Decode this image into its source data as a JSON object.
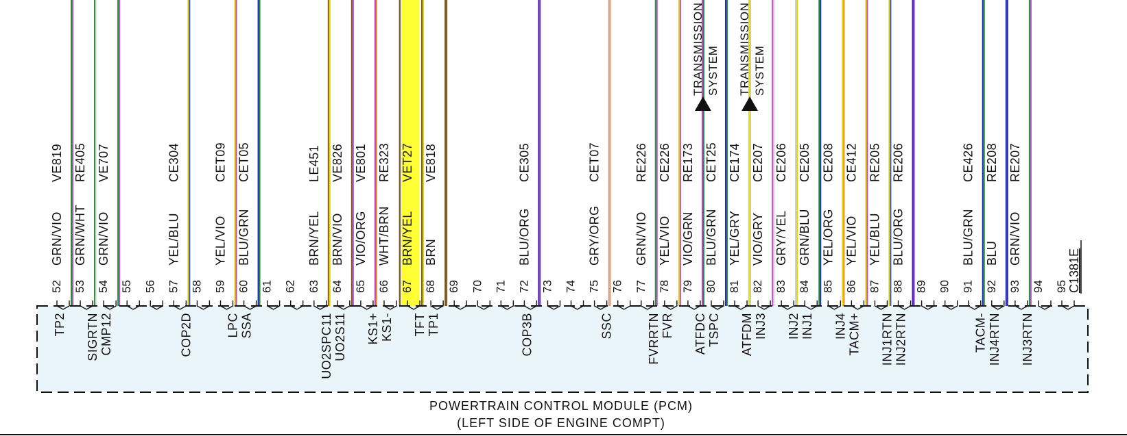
{
  "module": {
    "title": "POWERTRAIN CONTROL MODULE (PCM)",
    "subtitle": "(LEFT SIDE OF ENGINE COMPT)",
    "connector": "C1381E"
  },
  "pins": [
    {
      "pin": "52",
      "circuit": "VE819",
      "color": "GRN/VIO",
      "signal": "TP2",
      "wire": [
        "#1e8f3a",
        "#b84fc4"
      ]
    },
    {
      "pin": "53",
      "circuit": "RE405",
      "color": "GRN/WHT",
      "signal": "SIGRTN",
      "wire": [
        "#1e8f3a",
        "#e6e6e6"
      ]
    },
    {
      "pin": "54",
      "circuit": "VE707",
      "color": "GRN/VIO",
      "signal": "CMP12",
      "wire": [
        "#1e8f3a",
        "#b84fc4"
      ]
    },
    {
      "pin": "55"
    },
    {
      "pin": "56"
    },
    {
      "pin": "57",
      "circuit": "CE304",
      "color": "YEL/BLU",
      "signal": "COP2D",
      "wire": [
        "#e8d400",
        "#3a55d0"
      ]
    },
    {
      "pin": "58"
    },
    {
      "pin": "59",
      "circuit": "CET09",
      "color": "YEL/VIO",
      "signal": "LPC",
      "wire": [
        "#e8d400",
        "#b84fc4"
      ]
    },
    {
      "pin": "60",
      "circuit": "CET05",
      "color": "BLU/GRN",
      "signal": "SSA",
      "wire": [
        "#2a2ab0",
        "#1e8f3a"
      ]
    },
    {
      "pin": "61"
    },
    {
      "pin": "62"
    },
    {
      "pin": "63",
      "circuit": "LE451",
      "color": "BRN/YEL",
      "signal": "UO2SPC11",
      "wire": [
        "#7a5a1e",
        "#e8d400"
      ]
    },
    {
      "pin": "64",
      "circuit": "VE826",
      "color": "BRN/VIO",
      "signal": "UO2S11",
      "wire": [
        "#7a5a1e",
        "#b84fc4"
      ]
    },
    {
      "pin": "65",
      "circuit": "VE801",
      "color": "VIO/ORG",
      "signal": "KS1+",
      "wire": [
        "#b23cc4",
        "#f08a24"
      ]
    },
    {
      "pin": "66",
      "circuit": "RE323",
      "color": "WHT/BRN",
      "signal": "KS1-",
      "wire": [
        "#e6e6e6",
        "#7a5a1e"
      ]
    },
    {
      "pin": "67",
      "circuit": "VET27",
      "color": "BRN/YEL",
      "signal": "TFT",
      "wire": [
        "#7a5a1e",
        "#e8d400"
      ]
    },
    {
      "pin": "68",
      "circuit": "VE818",
      "color": "BRN",
      "signal": "TP1",
      "wire": [
        "#7a5a1e",
        "#7a5a1e"
      ]
    },
    {
      "pin": "69"
    },
    {
      "pin": "70"
    },
    {
      "pin": "71"
    },
    {
      "pin": "72",
      "circuit": "CE305",
      "color": "BLU/ORG",
      "signal": "COP3B",
      "wire": [
        "#4b1fb0",
        "#7a3cc8"
      ]
    },
    {
      "pin": "73"
    },
    {
      "pin": "74"
    },
    {
      "pin": "75",
      "circuit": "CET07",
      "color": "GRY/ORG",
      "signal": "SSC",
      "wire": [
        "#c8a890",
        "#e8a070"
      ]
    },
    {
      "pin": "76"
    },
    {
      "pin": "77",
      "circuit": "RE226",
      "color": "GRN/VIO",
      "signal": "FVRRTN",
      "wire": [
        "#1e8f3a",
        "#b84fc4"
      ]
    },
    {
      "pin": "78",
      "circuit": "CE226",
      "color": "YEL/VIO",
      "signal": "FVR",
      "wire": [
        "#e8d400",
        "#b84fc4"
      ]
    },
    {
      "pin": "79",
      "circuit": "RE173",
      "color": "VIO/GRN",
      "signal": "ATFDC",
      "wire": [
        "#b23cc4",
        "#1e8f3a"
      ]
    },
    {
      "pin": "80",
      "circuit": "CET25",
      "color": "BLU/GRN",
      "signal": "TSPC",
      "wire": [
        "#2a2ab0",
        "#1e8f3a"
      ]
    },
    {
      "pin": "81",
      "circuit": "CE174",
      "color": "YEL/GRY",
      "signal": "ATFDM",
      "wire": [
        "#e8e000",
        "#c8c8c8"
      ]
    },
    {
      "pin": "82",
      "circuit": "CE207",
      "color": "VIO/GRY",
      "signal": "INJ3",
      "wire": [
        "#c84fd4",
        "#c8c8c8"
      ]
    },
    {
      "pin": "83",
      "circuit": "CE206",
      "color": "GRY/YEL",
      "signal": "INJ2",
      "wire": [
        "#c8c8c8",
        "#e8d400"
      ]
    },
    {
      "pin": "84",
      "circuit": "CE205",
      "color": "GRN/BLU",
      "signal": "INJ1",
      "wire": [
        "#1e8f3a",
        "#2a2ab0"
      ]
    },
    {
      "pin": "85",
      "circuit": "CE208",
      "color": "YEL/ORG",
      "signal": "INJ4",
      "wire": [
        "#e8d400",
        "#f08a24"
      ]
    },
    {
      "pin": "86",
      "circuit": "CE412",
      "color": "YEL/VIO",
      "signal": "TACM+",
      "wire": [
        "#e8d400",
        "#b84fc4"
      ]
    },
    {
      "pin": "87",
      "circuit": "RE205",
      "color": "YEL/BLU",
      "signal": "INJ1RTN",
      "wire": [
        "#e8d400",
        "#3a55d0"
      ]
    },
    {
      "pin": "88",
      "circuit": "RE206",
      "color": "BLU/ORG",
      "signal": "INJ2RTN",
      "wire": [
        "#4b1fb0",
        "#7a3cc8"
      ]
    },
    {
      "pin": "89"
    },
    {
      "pin": "90"
    },
    {
      "pin": "91",
      "circuit": "CE426",
      "color": "BLU/GRN",
      "signal": "TACM-",
      "wire": [
        "#2a2ab0",
        "#1e8f3a"
      ]
    },
    {
      "pin": "92",
      "circuit": "RE208",
      "color": "BLU",
      "signal": "INJ4RTN",
      "wire": [
        "#2a2ab0",
        "#2a2ab0"
      ]
    },
    {
      "pin": "93",
      "circuit": "RE207",
      "color": "GRN/VIO",
      "signal": "INJ3RTN",
      "wire": [
        "#1e8f3a",
        "#b84fc4"
      ]
    },
    {
      "pin": "94"
    },
    {
      "pin": "95"
    }
  ],
  "highlight_pin": "67",
  "references": [
    {
      "pin": "79",
      "line1": "TRANSMISSION",
      "line2": "SYSTEM"
    },
    {
      "pin": "81",
      "line1": "TRANSMISSION",
      "line2": "SYSTEM"
    }
  ],
  "colors": {
    "module_fill": "#eaf4fb",
    "highlight": "#ffff33",
    "ink": "#111111"
  }
}
